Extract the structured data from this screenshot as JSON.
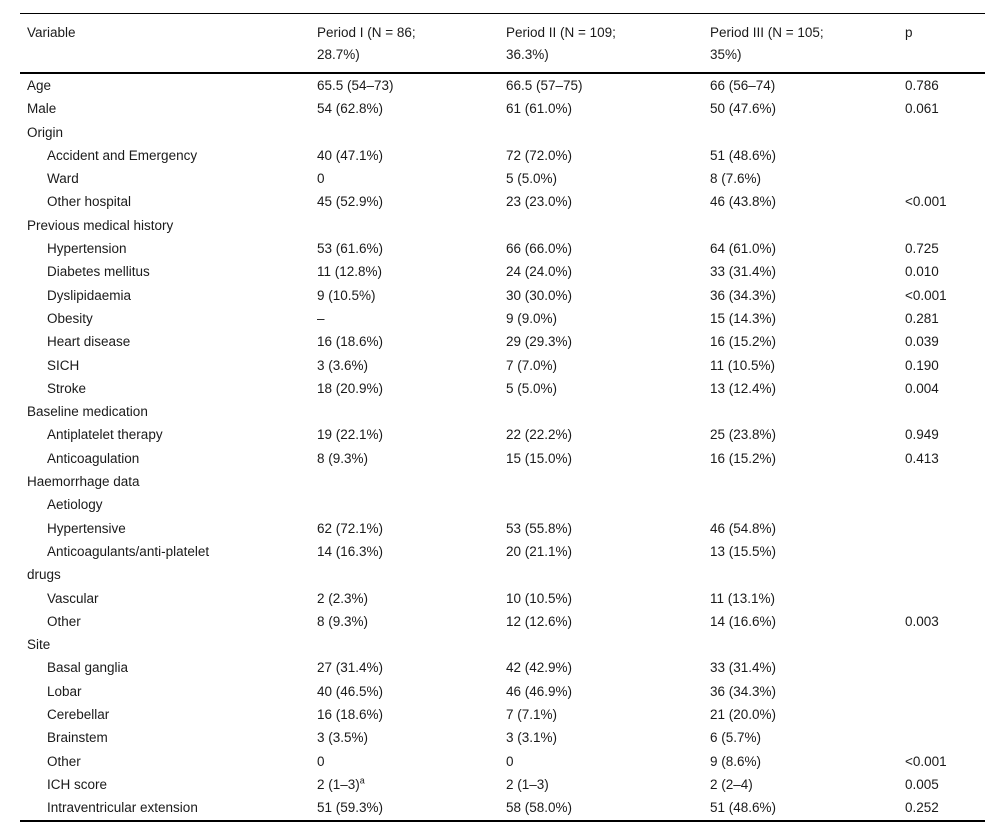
{
  "colors": {
    "background": "#ffffff",
    "text": "#1a1a1a",
    "rule": "#000000"
  },
  "table": {
    "header": {
      "variable": "Variable",
      "period1": {
        "line1": "Period I (N = 86;",
        "line2": "28.7%)"
      },
      "period2": {
        "line1": "Period II (N = 109;",
        "line2": "36.3%)"
      },
      "period3": {
        "line1": "Period III (N = 105;",
        "line2": "35%)"
      },
      "p": "p"
    },
    "rows": [
      {
        "indent": 0,
        "cells": [
          "Age",
          "65.5 (54–73)",
          "66.5 (57–75)",
          "66 (56–74)",
          "0.786"
        ]
      },
      {
        "indent": 0,
        "cells": [
          "Male",
          "54 (62.8%)",
          "61 (61.0%)",
          "50 (47.6%)",
          "0.061"
        ]
      },
      {
        "indent": 0,
        "cells": [
          "Origin",
          "",
          "",
          "",
          ""
        ]
      },
      {
        "indent": 1,
        "cells": [
          "Accident and Emergency",
          "40 (47.1%)",
          "72 (72.0%)",
          "51 (48.6%)",
          ""
        ]
      },
      {
        "indent": 1,
        "cells": [
          "Ward",
          "0",
          "5 (5.0%)",
          "8 (7.6%)",
          ""
        ]
      },
      {
        "indent": 1,
        "cells": [
          "Other hospital",
          "45 (52.9%)",
          "23 (23.0%)",
          "46 (43.8%)",
          "<0.001"
        ]
      },
      {
        "indent": 0,
        "cells": [
          "Previous medical history",
          "",
          "",
          "",
          ""
        ]
      },
      {
        "indent": 1,
        "cells": [
          "Hypertension",
          "53 (61.6%)",
          "66 (66.0%)",
          "64 (61.0%)",
          "0.725"
        ]
      },
      {
        "indent": 1,
        "cells": [
          "Diabetes mellitus",
          "11 (12.8%)",
          "24 (24.0%)",
          "33 (31.4%)",
          "0.010"
        ]
      },
      {
        "indent": 1,
        "cells": [
          "Dyslipidaemia",
          "9 (10.5%)",
          "30 (30.0%)",
          "36 (34.3%)",
          "<0.001"
        ]
      },
      {
        "indent": 1,
        "cells": [
          "Obesity",
          "–",
          "9 (9.0%)",
          "15 (14.3%)",
          "0.281"
        ]
      },
      {
        "indent": 1,
        "cells": [
          "Heart disease",
          "16 (18.6%)",
          "29 (29.3%)",
          "16 (15.2%)",
          "0.039"
        ]
      },
      {
        "indent": 1,
        "cells": [
          "SICH",
          "3 (3.6%)",
          "7 (7.0%)",
          "11 (10.5%)",
          "0.190"
        ]
      },
      {
        "indent": 1,
        "cells": [
          "Stroke",
          "18 (20.9%)",
          "5 (5.0%)",
          "13 (12.4%)",
          "0.004"
        ]
      },
      {
        "indent": 0,
        "cells": [
          "Baseline medication",
          "",
          "",
          "",
          ""
        ]
      },
      {
        "indent": 1,
        "cells": [
          "Antiplatelet therapy",
          "19 (22.1%)",
          "22 (22.2%)",
          "25 (23.8%)",
          "0.949"
        ]
      },
      {
        "indent": 1,
        "cells": [
          "Anticoagulation",
          "8 (9.3%)",
          "15 (15.0%)",
          "16 (15.2%)",
          "0.413"
        ]
      },
      {
        "indent": 0,
        "cells": [
          "Haemorrhage data",
          "",
          "",
          "",
          ""
        ]
      },
      {
        "indent": 1,
        "cells": [
          "Aetiology",
          "",
          "",
          "",
          ""
        ]
      },
      {
        "indent": 1,
        "cells": [
          "Hypertensive",
          "62 (72.1%)",
          "53 (55.8%)",
          "46 (54.8%)",
          ""
        ]
      },
      {
        "indent": 1,
        "cells": [
          "Anticoagulants/anti-platelet",
          "14 (16.3%)",
          "20 (21.1%)",
          "13 (15.5%)",
          ""
        ]
      },
      {
        "indent": 0,
        "cells": [
          "drugs",
          "",
          "",
          "",
          ""
        ]
      },
      {
        "indent": 1,
        "cells": [
          "Vascular",
          "2 (2.3%)",
          "10 (10.5%)",
          "11 (13.1%)",
          ""
        ]
      },
      {
        "indent": 1,
        "cells": [
          "Other",
          "8 (9.3%)",
          "12 (12.6%)",
          "14 (16.6%)",
          "0.003"
        ]
      },
      {
        "indent": 0,
        "cells": [
          "Site",
          "",
          "",
          "",
          ""
        ]
      },
      {
        "indent": 1,
        "cells": [
          "Basal ganglia",
          "27 (31.4%)",
          "42 (42.9%)",
          "33 (31.4%)",
          ""
        ]
      },
      {
        "indent": 1,
        "cells": [
          "Lobar",
          "40 (46.5%)",
          "46 (46.9%)",
          "36 (34.3%)",
          ""
        ]
      },
      {
        "indent": 1,
        "cells": [
          "Cerebellar",
          "16 (18.6%)",
          "7 (7.1%)",
          "21 (20.0%)",
          ""
        ]
      },
      {
        "indent": 1,
        "cells": [
          "Brainstem",
          "3 (3.5%)",
          "3 (3.1%)",
          "6 (5.7%)",
          ""
        ]
      },
      {
        "indent": 1,
        "cells": [
          "Other",
          "0",
          "0",
          "9 (8.6%)",
          "<0.001"
        ]
      },
      {
        "indent": 1,
        "cells": [
          "ICH score",
          "2 (1–3)",
          "2 (1–3)",
          "2 (2–4)",
          "0.005"
        ],
        "sup": {
          "cell": 1,
          "text": "a"
        }
      },
      {
        "indent": 1,
        "cells": [
          "Intraventricular extension",
          "51 (59.3%)",
          "58 (58.0%)",
          "51 (48.6%)",
          "0.252"
        ]
      }
    ]
  }
}
